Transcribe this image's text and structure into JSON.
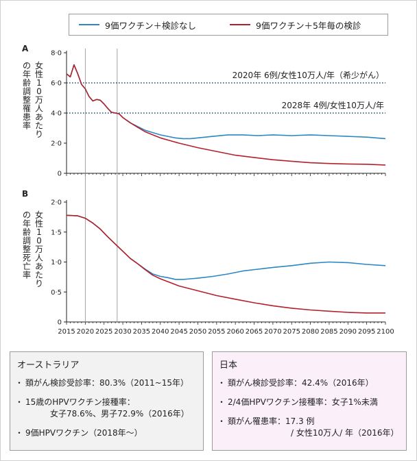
{
  "legend": {
    "blue_label": "9価ワクチン＋検診なし",
    "red_label": "9価ワクチン＋5年毎の検診",
    "blue_color": "#2a86c4",
    "red_color": "#b3202a"
  },
  "chart_data": [
    {
      "type": "line",
      "panel": "A",
      "ylabel": "女性10万人あたりの年齢調整罹患率",
      "ylim": [
        0,
        8
      ],
      "yticks": [
        "0",
        "2·0",
        "4·0",
        "6·0",
        "8·0"
      ],
      "xlim": [
        2015,
        2100
      ],
      "vlines": [
        2020,
        2028.5
      ],
      "hlines": [
        {
          "y": 6,
          "label": "2020年  6例/女性10万人/年（希少がん）"
        },
        {
          "y": 4,
          "label": "2028年  4例/女性10万人/年"
        }
      ],
      "series": [
        {
          "name": "9価ワクチン＋検診なし",
          "points": [
            [
              2015,
              6.6
            ],
            [
              2016,
              6.4
            ],
            [
              2017,
              7.2
            ],
            [
              2018,
              6.6
            ],
            [
              2019,
              5.9
            ],
            [
              2020,
              5.6
            ],
            [
              2021,
              5.1
            ],
            [
              2022,
              4.8
            ],
            [
              2023,
              4.9
            ],
            [
              2024,
              4.85
            ],
            [
              2025,
              4.6
            ],
            [
              2026,
              4.3
            ],
            [
              2027,
              4.05
            ],
            [
              2028,
              4.0
            ],
            [
              2029,
              3.95
            ],
            [
              2030,
              3.7
            ],
            [
              2032,
              3.35
            ],
            [
              2034,
              3.1
            ],
            [
              2036,
              2.85
            ],
            [
              2038,
              2.7
            ],
            [
              2040,
              2.55
            ],
            [
              2042,
              2.45
            ],
            [
              2044,
              2.35
            ],
            [
              2046,
              2.3
            ],
            [
              2048,
              2.3
            ],
            [
              2050,
              2.35
            ],
            [
              2054,
              2.45
            ],
            [
              2058,
              2.55
            ],
            [
              2062,
              2.55
            ],
            [
              2066,
              2.5
            ],
            [
              2070,
              2.55
            ],
            [
              2075,
              2.5
            ],
            [
              2080,
              2.55
            ],
            [
              2085,
              2.5
            ],
            [
              2090,
              2.45
            ],
            [
              2095,
              2.4
            ],
            [
              2100,
              2.3
            ]
          ]
        },
        {
          "name": "9価ワクチン＋5年毎の検診",
          "points": [
            [
              2015,
              6.6
            ],
            [
              2016,
              6.4
            ],
            [
              2017,
              7.2
            ],
            [
              2018,
              6.6
            ],
            [
              2019,
              5.9
            ],
            [
              2020,
              5.6
            ],
            [
              2021,
              5.1
            ],
            [
              2022,
              4.8
            ],
            [
              2023,
              4.9
            ],
            [
              2024,
              4.85
            ],
            [
              2025,
              4.6
            ],
            [
              2026,
              4.3
            ],
            [
              2027,
              4.05
            ],
            [
              2028,
              4.0
            ],
            [
              2029,
              3.95
            ],
            [
              2030,
              3.7
            ],
            [
              2032,
              3.35
            ],
            [
              2034,
              3.05
            ],
            [
              2036,
              2.75
            ],
            [
              2038,
              2.55
            ],
            [
              2040,
              2.35
            ],
            [
              2045,
              2.0
            ],
            [
              2050,
              1.7
            ],
            [
              2055,
              1.45
            ],
            [
              2060,
              1.2
            ],
            [
              2065,
              1.05
            ],
            [
              2070,
              0.9
            ],
            [
              2075,
              0.8
            ],
            [
              2080,
              0.7
            ],
            [
              2085,
              0.65
            ],
            [
              2090,
              0.62
            ],
            [
              2095,
              0.6
            ],
            [
              2100,
              0.55
            ]
          ]
        }
      ]
    },
    {
      "type": "line",
      "panel": "B",
      "ylabel": "女性10万人あたりの年齢調整死亡率",
      "ylim": [
        0,
        2
      ],
      "yticks": [
        "0",
        "0·5",
        "1·0",
        "1·5",
        "2·0"
      ],
      "xlim": [
        2015,
        2100
      ],
      "xticks": [
        2015,
        2020,
        2025,
        2030,
        2035,
        2040,
        2045,
        2050,
        2055,
        2060,
        2065,
        2070,
        2075,
        2080,
        2085,
        2090,
        2095,
        2100
      ],
      "vlines": [
        2020,
        2028.5
      ],
      "series": [
        {
          "name": "9価ワクチン＋検診なし",
          "points": [
            [
              2015,
              1.78
            ],
            [
              2018,
              1.77
            ],
            [
              2020,
              1.73
            ],
            [
              2022,
              1.65
            ],
            [
              2024,
              1.55
            ],
            [
              2026,
              1.42
            ],
            [
              2028,
              1.3
            ],
            [
              2030,
              1.18
            ],
            [
              2032,
              1.06
            ],
            [
              2034,
              0.97
            ],
            [
              2036,
              0.88
            ],
            [
              2038,
              0.8
            ],
            [
              2040,
              0.76
            ],
            [
              2042,
              0.74
            ],
            [
              2044,
              0.71
            ],
            [
              2046,
              0.71
            ],
            [
              2048,
              0.72
            ],
            [
              2050,
              0.73
            ],
            [
              2054,
              0.76
            ],
            [
              2058,
              0.8
            ],
            [
              2062,
              0.85
            ],
            [
              2066,
              0.88
            ],
            [
              2070,
              0.91
            ],
            [
              2075,
              0.94
            ],
            [
              2080,
              0.98
            ],
            [
              2085,
              1.0
            ],
            [
              2090,
              0.99
            ],
            [
              2095,
              0.96
            ],
            [
              2100,
              0.94
            ]
          ]
        },
        {
          "name": "9価ワクチン＋5年毎の検診",
          "points": [
            [
              2015,
              1.78
            ],
            [
              2018,
              1.77
            ],
            [
              2020,
              1.73
            ],
            [
              2022,
              1.65
            ],
            [
              2024,
              1.55
            ],
            [
              2026,
              1.42
            ],
            [
              2028,
              1.3
            ],
            [
              2030,
              1.18
            ],
            [
              2032,
              1.06
            ],
            [
              2034,
              0.97
            ],
            [
              2036,
              0.87
            ],
            [
              2038,
              0.78
            ],
            [
              2040,
              0.72
            ],
            [
              2045,
              0.6
            ],
            [
              2050,
              0.52
            ],
            [
              2055,
              0.44
            ],
            [
              2060,
              0.38
            ],
            [
              2065,
              0.32
            ],
            [
              2070,
              0.27
            ],
            [
              2075,
              0.23
            ],
            [
              2080,
              0.2
            ],
            [
              2085,
              0.18
            ],
            [
              2090,
              0.16
            ],
            [
              2095,
              0.15
            ],
            [
              2100,
              0.15
            ]
          ]
        }
      ]
    }
  ],
  "australia": {
    "title": "オーストラリア",
    "item1": "頚がん検診受診率：80.3%（2011~15年）",
    "item2a": "15歳のHPVワクチン接種率：",
    "item2b": "女子78.6%、男子72.9%（2016年）",
    "item3": "9価HPVワクチン（2018年～）"
  },
  "japan": {
    "title": "日本",
    "item1": "頚がん検診受診率：42.4%（2016年）",
    "item2": "2/4価HPVワクチン接種率：女子1%未満",
    "item3a": "頚がん罹患率：17.3 例",
    "item3b": "/ 女性10万人/ 年（2016年）"
  }
}
